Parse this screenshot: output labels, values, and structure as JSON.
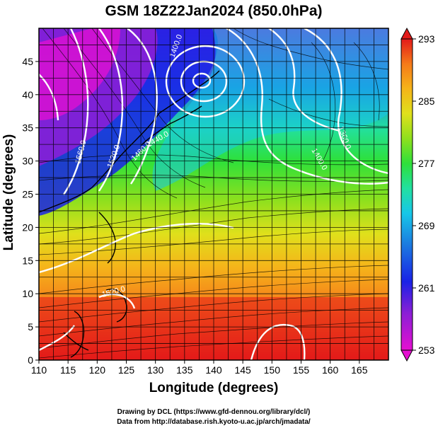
{
  "title": "GSM 18Z22Jan2024 (850.0hPa)",
  "x_axis": {
    "label": "Longitude (degrees)",
    "range": [
      110,
      170
    ],
    "ticks": [
      "110",
      "115",
      "120",
      "125",
      "130",
      "135",
      "140",
      "145",
      "150",
      "155",
      "160",
      "165"
    ]
  },
  "y_axis": {
    "label": "Latitude  (degrees)",
    "range": [
      0,
      50
    ],
    "ticks": [
      "0",
      "5",
      "10",
      "15",
      "20",
      "25",
      "30",
      "35",
      "40",
      "45"
    ]
  },
  "colorbar": {
    "range": [
      253,
      293
    ],
    "ticks": [
      "293",
      "285",
      "277",
      "269",
      "261",
      "253"
    ],
    "colors": [
      "#e50fd1",
      "#8a1fd6",
      "#1a22e6",
      "#1b7be0",
      "#17c7e8",
      "#22e0a0",
      "#2ee03a",
      "#8fe01d",
      "#e0e01b",
      "#f5b41a",
      "#f57a1a",
      "#ef3b1a",
      "#e31a1a"
    ]
  },
  "contour_labels": [
    "1400.0",
    "1440.0",
    "1480.0",
    "1520.0",
    "1560.0",
    "1400.0",
    "1360.0",
    "1520.0"
  ],
  "credits": [
    "Drawing by DCL (https://www.gfd-dennou.org/library/dcl/)",
    "Data from http://database.rish.kyoto-u.ac.jp/arch/jmadata/"
  ]
}
